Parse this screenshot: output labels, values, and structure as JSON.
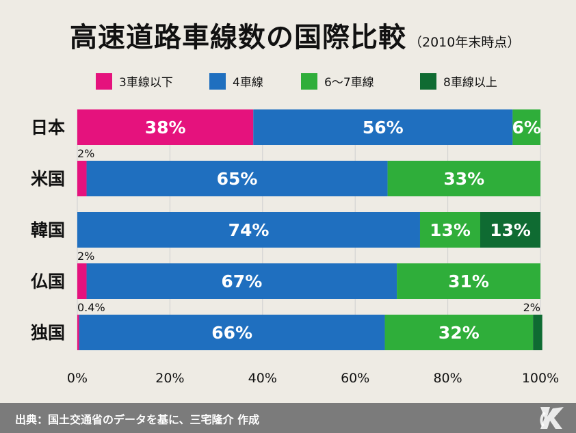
{
  "title": {
    "main": "高速道路車線数の国際比較",
    "sub": "（2010年末時点）"
  },
  "footer": {
    "source": "出典：国土交通省のデータを基に、三宅隆介 作成"
  },
  "chart_data": {
    "type": "bar",
    "orientation": "horizontal",
    "stacked": true,
    "categories": [
      "日本",
      "米国",
      "韓国",
      "仏国",
      "独国"
    ],
    "series": [
      {
        "name": "3車線以下",
        "color": "#e5127d",
        "values": [
          38,
          2,
          0,
          2,
          0.4
        ]
      },
      {
        "name": "4車線",
        "color": "#1f6fbf",
        "values": [
          56,
          65,
          74,
          67,
          66
        ]
      },
      {
        "name": "6〜7車線",
        "color": "#2fae3a",
        "values": [
          6,
          33,
          13,
          31,
          32
        ]
      },
      {
        "name": "8車線以上",
        "color": "#0f6b32",
        "values": [
          0,
          0,
          13,
          0,
          2
        ]
      }
    ],
    "data_labels": [
      [
        "38%",
        "56%",
        "6%",
        ""
      ],
      [
        "2%",
        "65%",
        "33%",
        ""
      ],
      [
        "",
        "74%",
        "13%",
        "13%"
      ],
      [
        "2%",
        "67%",
        "31%",
        ""
      ],
      [
        "0.4%",
        "66%",
        "32%",
        "2%"
      ]
    ],
    "x_ticks": [
      "0%",
      "20%",
      "40%",
      "60%",
      "80%",
      "100%"
    ],
    "xlim": [
      0,
      100
    ],
    "grid": true,
    "legend_position": "top"
  }
}
